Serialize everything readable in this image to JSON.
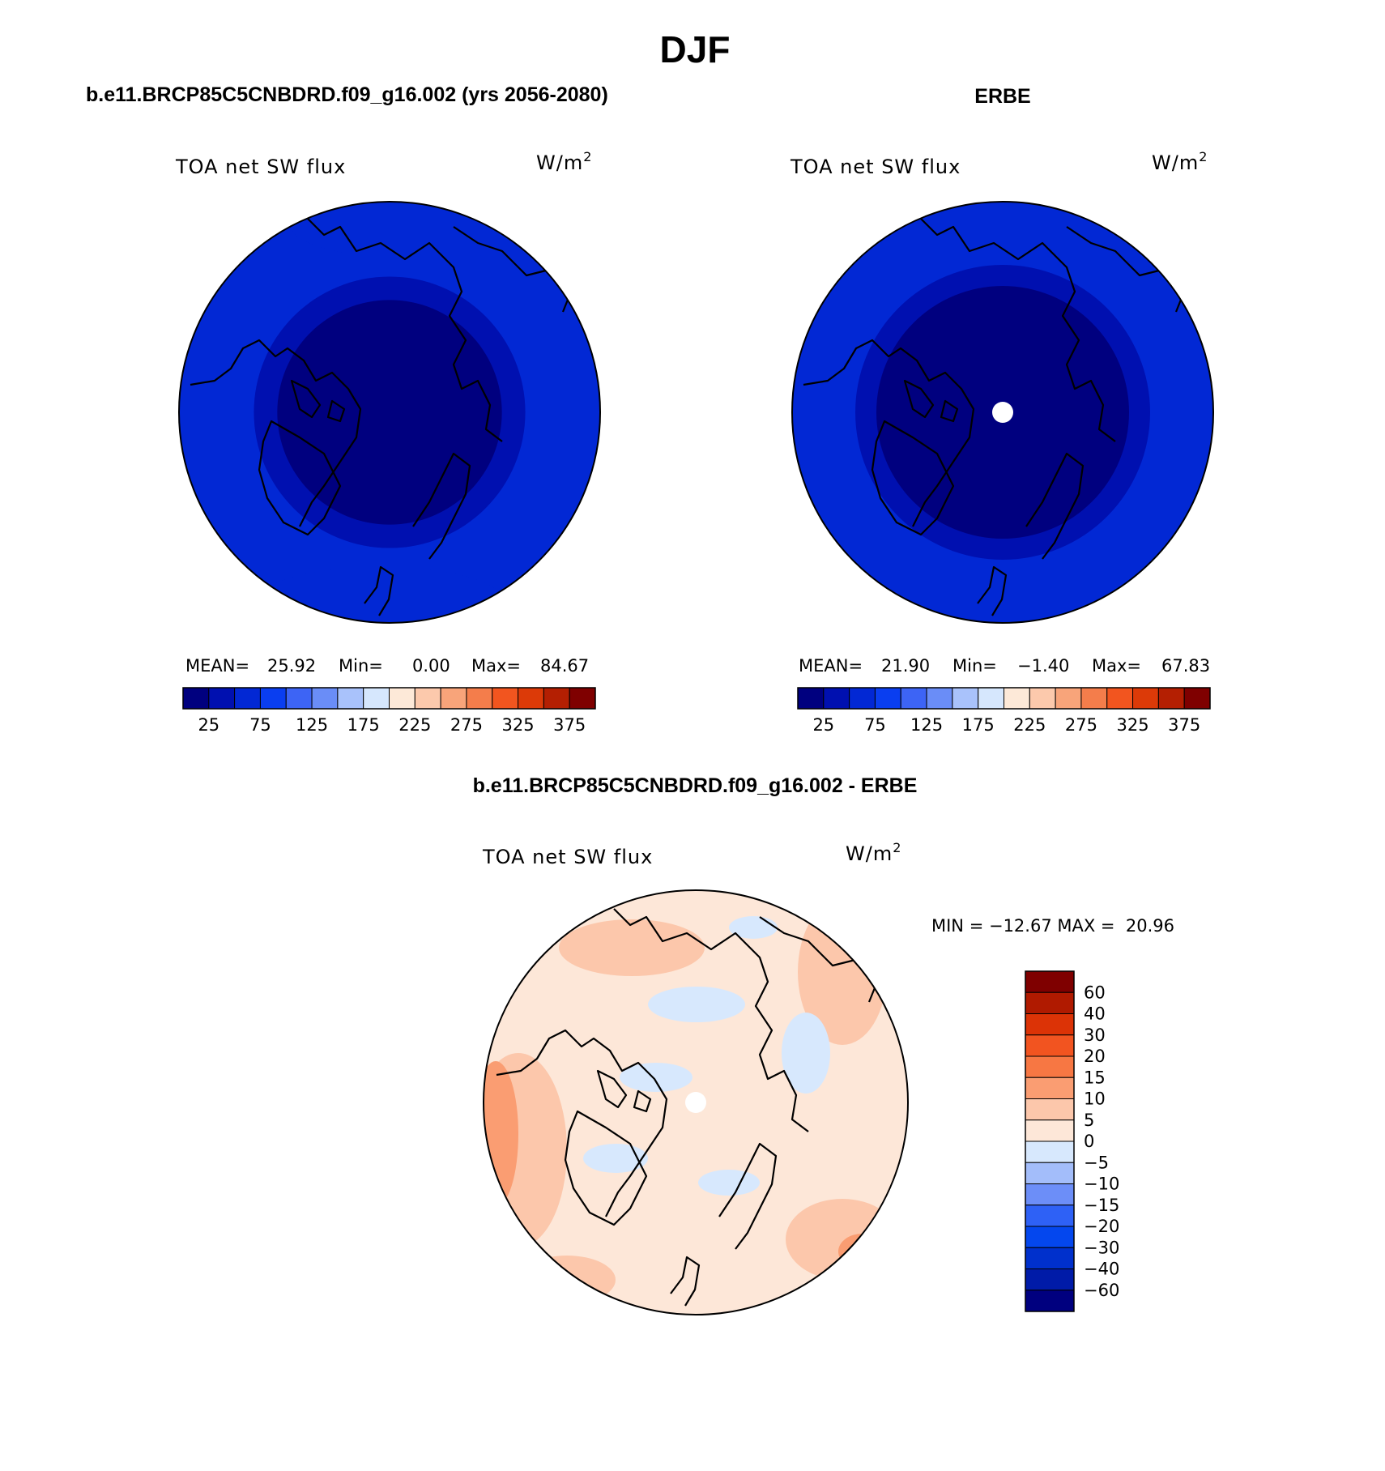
{
  "figure": {
    "title": "DJF"
  },
  "colors": {
    "sw_scale": [
      "#00007f",
      "#0010b0",
      "#0228d4",
      "#0a3ef0",
      "#3d64f5",
      "#6a8df7",
      "#a9c2fb",
      "#d6e7fd",
      "#fde9d8",
      "#fcc9ac",
      "#f8a47a",
      "#f47d4b",
      "#f2551f",
      "#dc3a08",
      "#b41f02",
      "#7f0000"
    ],
    "diff_scale": [
      "#00007f",
      "#001ba8",
      "#0030cc",
      "#0447ee",
      "#2e61f6",
      "#6c8ef8",
      "#a3bdfa",
      "#d7e8fd",
      "#fde7d8",
      "#fcc7ab",
      "#fa9d72",
      "#f77743",
      "#f25420",
      "#dc3306",
      "#b01a00",
      "#7f0000"
    ]
  },
  "chart_data": [
    {
      "type": "heatmap",
      "projection": "north-polar-stereographic",
      "title": "b.e11.BRCP85C5CNBDRD.f09_g16.002 (yrs 2056-2080)",
      "variable": "TOA net SW flux",
      "units": "W/m",
      "units_exp": "2",
      "stats": {
        "mean_label": "MEAN=",
        "mean": "25.92",
        "min_label": "Min=",
        "min": "0.00",
        "max_label": "Max=",
        "max": "84.67"
      },
      "colorbar": {
        "orientation": "horizontal",
        "levels": [
          25,
          50,
          75,
          100,
          125,
          150,
          175,
          200,
          225,
          250,
          275,
          300,
          325,
          350,
          375
        ],
        "tick_labels": [
          "25",
          "75",
          "125",
          "175",
          "225",
          "275",
          "325",
          "375"
        ]
      },
      "field_bands": [
        {
          "max_colatitude_deg": 48,
          "color_index": 0
        },
        {
          "max_colatitude_deg": 58,
          "color_index": 1
        },
        {
          "max_colatitude_deg": 90,
          "color_index": 2
        }
      ],
      "missing_pole": false
    },
    {
      "type": "heatmap",
      "projection": "north-polar-stereographic",
      "title": "ERBE",
      "variable": "TOA net SW flux",
      "units": "W/m",
      "units_exp": "2",
      "stats": {
        "mean_label": "MEAN=",
        "mean": "21.90",
        "min_label": "Min=",
        "min": "−1.40",
        "max_label": "Max=",
        "max": "67.83"
      },
      "colorbar": {
        "orientation": "horizontal",
        "levels": [
          25,
          50,
          75,
          100,
          125,
          150,
          175,
          200,
          225,
          250,
          275,
          300,
          325,
          350,
          375
        ],
        "tick_labels": [
          "25",
          "75",
          "125",
          "175",
          "225",
          "275",
          "325",
          "375"
        ]
      },
      "field_bands": [
        {
          "max_colatitude_deg": 54,
          "color_index": 0
        },
        {
          "max_colatitude_deg": 63,
          "color_index": 1
        },
        {
          "max_colatitude_deg": 90,
          "color_index": 2
        }
      ],
      "missing_pole": true
    },
    {
      "type": "heatmap",
      "projection": "north-polar-stereographic",
      "title": "b.e11.BRCP85C5CNBDRD.f09_g16.002 - ERBE",
      "variable": "TOA net SW flux",
      "units": "W/m",
      "units_exp": "2",
      "stats_text": "MIN = −12.67 MAX =  20.96",
      "colorbar": {
        "orientation": "vertical",
        "levels": [
          60,
          40,
          30,
          20,
          15,
          10,
          5,
          0,
          -5,
          -10,
          -15,
          -20,
          -30,
          -40,
          -60
        ],
        "tick_labels": [
          "60",
          "40",
          "30",
          "20",
          "15",
          "10",
          "5",
          "0",
          "−5",
          "−10",
          "−15",
          "−20",
          "−30",
          "−40",
          "−60"
        ]
      },
      "field_bands": [
        {
          "max_colatitude_deg": 90,
          "color_index": 8
        }
      ],
      "missing_pole": true
    }
  ]
}
